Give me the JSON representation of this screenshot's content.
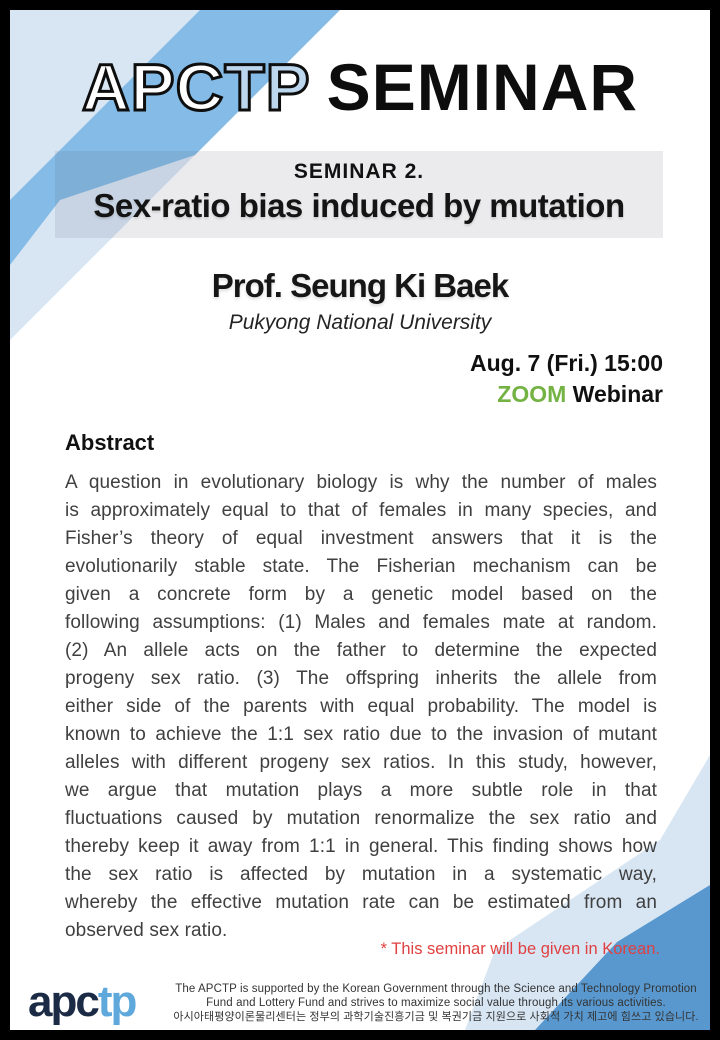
{
  "poster": {
    "header": {
      "brand_white": "APC",
      "brand_blue": "TP",
      "title_rest": "SEMINAR"
    },
    "seminar": {
      "label": "SEMINAR 2.",
      "title": "Sex-ratio bias induced by mutation"
    },
    "speaker": {
      "name": "Prof. Seung Ki Baek",
      "affiliation": "Pukyong National University"
    },
    "schedule": {
      "datetime": "Aug. 7 (Fri.) 15:00",
      "platform_name": "ZOOM",
      "platform_rest": " Webinar"
    },
    "abstract": {
      "heading": "Abstract",
      "lines": [
        "A question in evolutionary biology is why the number of males",
        "is approximately equal to that of females in many species, and",
        "Fisher’s theory of equal investment answers that it is the",
        "evolutionarily stable state. The Fisherian mechanism can be",
        "given a concrete form by a genetic model based on the",
        "following assumptions: (1) Males and females mate at random.",
        "(2) An allele acts on the father to determine the expected",
        "progeny sex ratio. (3) The offspring inherits the allele from",
        "either side of the parents with equal probability. The model is",
        "known to achieve the 1:1 sex ratio due to the invasion of mutant",
        "alleles with different progeny sex ratios. In this study, however,",
        "we argue that mutation plays a more subtle role in that",
        "fluctuations caused by mutation renormalize the sex ratio and",
        "thereby keep it away from 1:1 in general. This finding shows how",
        "the sex ratio is affected by mutation in a systematic way,",
        "whereby the effective mutation rate can be estimated from an",
        "observed sex ratio."
      ]
    },
    "note": "* This seminar will be given in Korean.",
    "footer": {
      "logo_dark": "apc",
      "logo_blue": "tp",
      "line1": "The APCTP is supported by the Korean Government through the Science and Technology Promotion",
      "line2": "Fund and Lottery Fund and strives to maximize social value through its various activities.",
      "line3": "아시아태평양이론물리센터는 정부의 과학기술진흥기금 및 복권기금 지원으로 사회적 가치 제고에 힘쓰고 있습니다."
    },
    "colors": {
      "pale_blue": "#d8e6f4",
      "sky_blue": "#84bce7",
      "deep_blue": "#5898cf",
      "green": "#74b243",
      "red": "#e04040",
      "logo_navy": "#1b2a45",
      "logo_blue": "#5fa8dc",
      "band_overlay": "rgba(70,70,85,0.105)"
    }
  }
}
